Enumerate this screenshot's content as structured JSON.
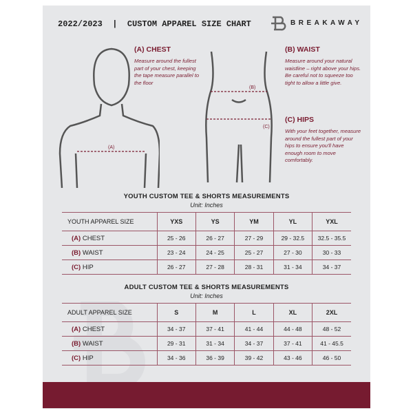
{
  "header": {
    "title": "2022/2023  |  CUSTOM APPAREL SIZE CHART",
    "brand": "BREAKAWAY"
  },
  "colors": {
    "accent": "#7a1c30",
    "panel": "#e6e7e9"
  },
  "chest": {
    "heading": "(A) CHEST",
    "text": "Measure around the fullest part of your chest, keeping the tape measure parallel to the floor",
    "marker": "(A)"
  },
  "waist": {
    "heading": "(B) WAIST",
    "text": "Measure around your natural waistline – right above your hips. Be careful not to squeeze too tight to allow a little give.",
    "marker": "(B)"
  },
  "hips": {
    "heading": "(C) HIPS",
    "text": "With your feet together, measure around the fullest part of your hips to ensure you'll have enough room to move comfortably.",
    "marker": "(C)"
  },
  "youth": {
    "title": "YOUTH CUSTOM TEE & SHORTS MEASUREMENTS",
    "unit": "Unit: Inches",
    "header": "YOUTH APPAREL SIZE",
    "sizes": [
      "YXS",
      "YS",
      "YM",
      "YL",
      "YXL"
    ],
    "rows": [
      {
        "letter": "(A)",
        "label": "CHEST",
        "values": [
          "25 - 26",
          "26 - 27",
          "27 - 29",
          "29 - 32.5",
          "32.5 - 35.5"
        ]
      },
      {
        "letter": "(B)",
        "label": "WAIST",
        "values": [
          "23 - 24",
          "24 - 25",
          "25 - 27",
          "27 - 30",
          "30 - 33"
        ]
      },
      {
        "letter": "(C)",
        "label": "HIP",
        "values": [
          "26 - 27",
          "27 - 28",
          "28 - 31",
          "31 - 34",
          "34 - 37"
        ]
      }
    ]
  },
  "adult": {
    "title": "ADULT CUSTOM TEE & SHORTS MEASUREMENTS",
    "unit": "Unit: Inches",
    "header": "ADULT APPAREL SIZE",
    "sizes": [
      "S",
      "M",
      "L",
      "XL",
      "2XL"
    ],
    "rows": [
      {
        "letter": "(A)",
        "label": "CHEST",
        "values": [
          "34 - 37",
          "37 - 41",
          "41 - 44",
          "44 - 48",
          "48 - 52"
        ]
      },
      {
        "letter": "(B)",
        "label": "WAIST",
        "values": [
          "29 - 31",
          "31 - 34",
          "34 - 37",
          "37 - 41",
          "41 - 45.5"
        ]
      },
      {
        "letter": "(C)",
        "label": "HIP",
        "values": [
          "34 - 36",
          "36 - 39",
          "39 - 42",
          "43 - 46",
          "46 - 50"
        ]
      }
    ]
  }
}
